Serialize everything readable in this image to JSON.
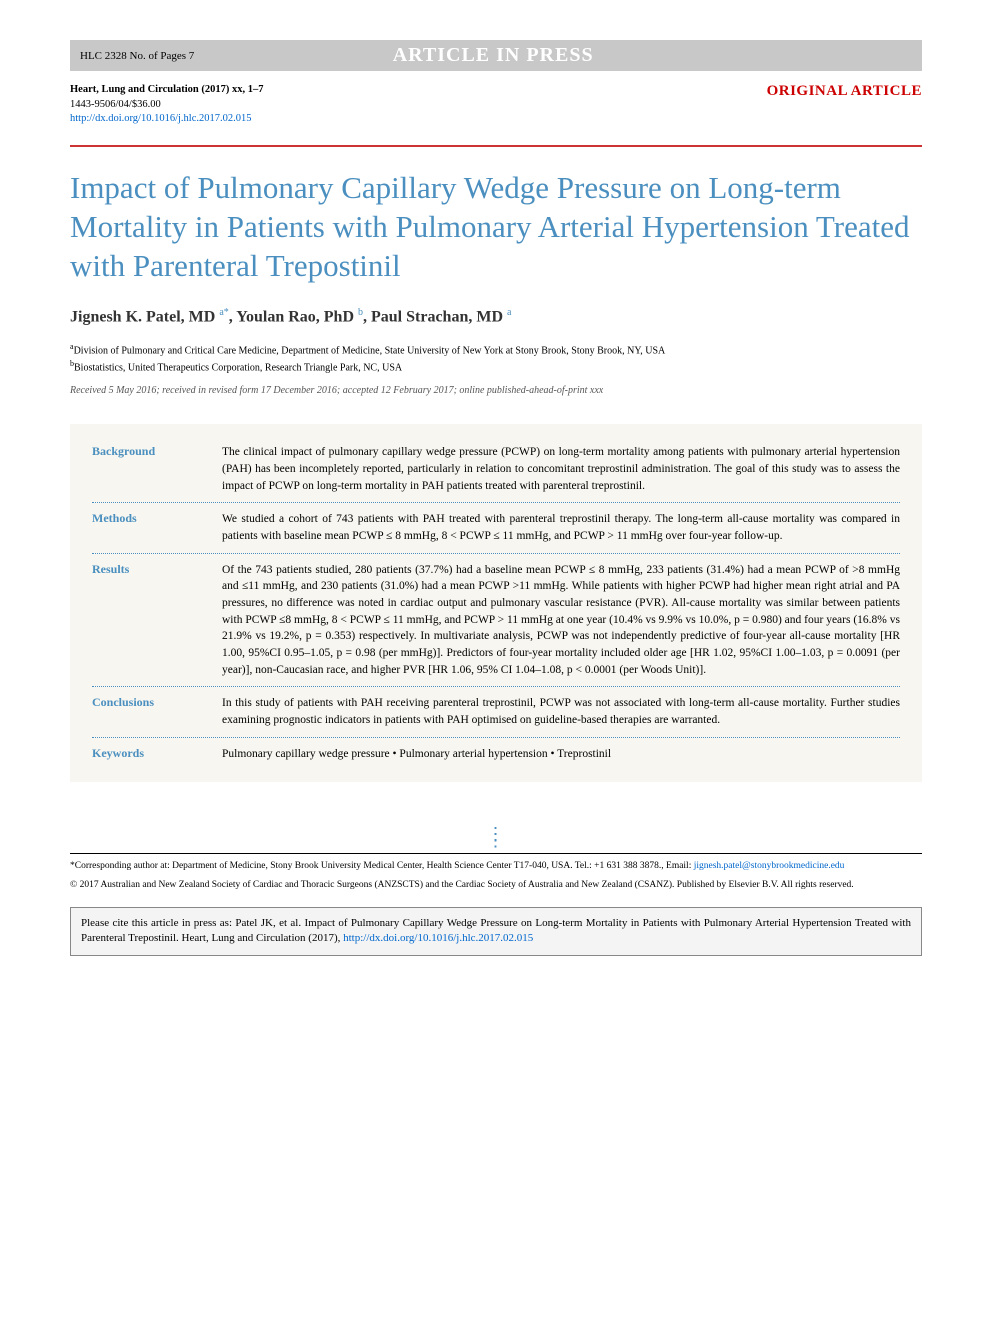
{
  "top_bar": {
    "left": "HLC 2328  No. of Pages 7",
    "center": "ARTICLE IN PRESS"
  },
  "header": {
    "journal_line": "Heart, Lung and Circulation (2017) xx, 1–7",
    "issn_line": "1443-9506/04/$36.00",
    "doi_url": "http://dx.doi.org/10.1016/j.hlc.2017.02.015",
    "article_type": "ORIGINAL ARTICLE"
  },
  "title": "Impact of Pulmonary Capillary Wedge Pressure on Long-term Mortality in Patients with Pulmonary Arterial Hypertension Treated with Parenteral Trepostinil",
  "authors_html": "Jignesh K. Patel, MD <sup>a*</sup>, Youlan Rao, PhD <sup>b</sup>, Paul Strachan, MD <sup>a</sup>",
  "affiliations": [
    {
      "sup": "a",
      "text": "Division of Pulmonary and Critical Care Medicine, Department of Medicine, State University of New York at Stony Brook, Stony Brook, NY, USA"
    },
    {
      "sup": "b",
      "text": "Biostatistics, United Therapeutics Corporation, Research Triangle Park, NC, USA"
    }
  ],
  "history": "Received 5 May 2016; received in revised form 17 December 2016; accepted 12 February 2017; online published-ahead-of-print xxx",
  "abstract": [
    {
      "label": "Background",
      "text": "The clinical impact of pulmonary capillary wedge pressure (PCWP) on long-term mortality among patients with pulmonary arterial hypertension (PAH) has been incompletely reported, particularly in relation to concomitant treprostinil administration. The goal of this study was to assess the impact of PCWP on long-term mortality in PAH patients treated with parenteral treprostinil."
    },
    {
      "label": "Methods",
      "text": "We studied a cohort of 743 patients with PAH treated with parenteral treprostinil therapy. The long-term all-cause mortality was compared in patients with baseline mean PCWP ≤ 8 mmHg, 8 < PCWP ≤ 11 mmHg, and PCWP > 11 mmHg over four-year follow-up."
    },
    {
      "label": "Results",
      "text": "Of the 743 patients studied, 280 patients (37.7%) had a baseline mean PCWP ≤ 8 mmHg, 233 patients (31.4%) had a mean PCWP of >8 mmHg and ≤11 mmHg, and 230 patients (31.0%) had a mean PCWP >11 mmHg. While patients with higher PCWP had higher mean right atrial and PA pressures, no difference was noted in cardiac output and pulmonary vascular resistance (PVR). All-cause mortality was similar between patients with PCWP ≤8 mmHg, 8 < PCWP ≤ 11 mmHg, and PCWP > 11 mmHg at one year (10.4% vs 9.9% vs 10.0%, p = 0.980) and four years (16.8% vs 21.9% vs 19.2%, p = 0.353) respectively. In multivariate analysis, PCWP was not independently predictive of four-year all-cause mortality [HR 1.00, 95%CI 0.95–1.05, p = 0.98 (per mmHg)]. Predictors of four-year mortality included older age [HR 1.02, 95%CI 1.00–1.03, p = 0.0091 (per year)], non-Caucasian race, and higher PVR [HR 1.06, 95% CI 1.04–1.08, p < 0.0001 (per Woods Unit)]."
    },
    {
      "label": "Conclusions",
      "text": "In this study of patients with PAH receiving parenteral treprostinil, PCWP was not associated with long-term all-cause mortality. Further studies examining prognostic indicators in patients with PAH optimised on guideline-based therapies are warranted."
    },
    {
      "label": "Keywords",
      "text": "Pulmonary capillary wedge pressure  •  Pulmonary arterial hypertension  •  Treprostinil"
    }
  ],
  "footer": {
    "correspondence": "*Corresponding author at: Department of Medicine, Stony Brook University Medical Center, Health Science Center T17-040, USA. Tel.: +1 631 388 3878., Email: ",
    "email": "jignesh.patel@stonybrookmedicine.edu",
    "copyright": "© 2017 Australian and New Zealand Society of Cardiac and Thoracic Surgeons (ANZSCTS) and the Cardiac Society of Australia and New Zealand (CSANZ). Published by Elsevier B.V. All rights reserved.",
    "cite_text": "Please cite this article in press as: Patel JK, et al. Impact of Pulmonary Capillary Wedge Pressure on Long-term Mortality in Patients with Pulmonary Arterial Hypertension Treated with Parenteral Trepostinil. Heart, Lung and Circulation (2017), ",
    "cite_doi": "http://dx.doi.org/10.1016/j.hlc.2017.02.015"
  },
  "colors": {
    "accent_blue": "#4a8fbf",
    "accent_red": "#cc0000",
    "divider_red": "#cc3333",
    "link_blue": "#0066cc",
    "top_bar_bg": "#c8c8c8",
    "abstract_bg": "#f7f6f0",
    "cite_bg": "#f4f4f4"
  }
}
